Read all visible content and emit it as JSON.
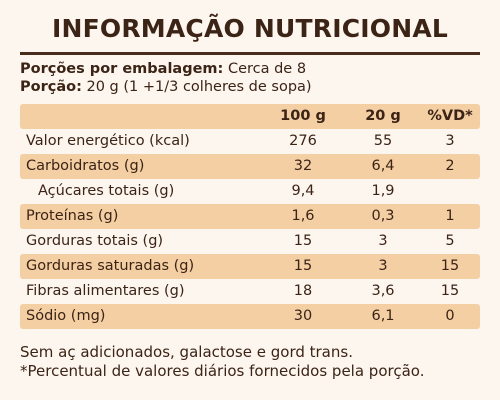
{
  "title": "INFORMAÇÃO NUTRICIONAL",
  "servings": {
    "per_package_label": "Porções por embalagem:",
    "per_package_value": "Cerca de 8",
    "portion_label": "Porção:",
    "portion_value": "20 g (1 +1/3 colheres de sopa)"
  },
  "table": {
    "headers": [
      "",
      "100 g",
      "20 g",
      "%VD*"
    ],
    "rows": [
      {
        "label": "Valor energético (kcal)",
        "v100": "276",
        "v20": "55",
        "vd": "3"
      },
      {
        "label": "Carboidratos (g)",
        "v100": "32",
        "v20": "6,4",
        "vd": "2"
      },
      {
        "label": "Açúcares totais (g)",
        "v100": "9,4",
        "v20": "1,9",
        "vd": ""
      },
      {
        "label": "Proteínas (g)",
        "v100": "1,6",
        "v20": "0,3",
        "vd": "1"
      },
      {
        "label": "Gorduras totais (g)",
        "v100": "15",
        "v20": "3",
        "vd": "5"
      },
      {
        "label": "Gorduras saturadas (g)",
        "v100": "15",
        "v20": "3",
        "vd": "15"
      },
      {
        "label": "Fibras alimentares (g)",
        "v100": "18",
        "v20": "3,6",
        "vd": "15"
      },
      {
        "label": "Sódio (mg)",
        "v100": "30",
        "v20": "6,1",
        "vd": "0"
      }
    ]
  },
  "footnotes": [
    "Sem aç adicionados, galactose e gord trans.",
    "*Percentual de valores diários fornecidos pela porção."
  ],
  "colors": {
    "background": "#fdf6ef",
    "row_shade": "#f3cfa3",
    "text": "#3b2416"
  }
}
